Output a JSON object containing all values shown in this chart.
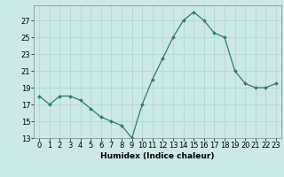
{
  "x": [
    0,
    1,
    2,
    3,
    4,
    5,
    6,
    7,
    8,
    9,
    10,
    11,
    12,
    13,
    14,
    15,
    16,
    17,
    18,
    19,
    20,
    21,
    22,
    23
  ],
  "y": [
    18,
    17,
    18,
    18,
    17.5,
    16.5,
    15.5,
    15,
    14.5,
    13,
    17,
    20,
    22.5,
    25,
    27,
    28,
    27,
    25.5,
    25,
    21,
    19.5,
    19,
    19,
    19.5
  ],
  "line_color": "#2d7d6e",
  "marker_color": "#2d7d6e",
  "bg_color": "#cce8e8",
  "grid_color": "#b0d8d8",
  "xlabel": "Humidex (Indice chaleur)",
  "ylim": [
    13,
    28
  ],
  "xlim": [
    -0.5,
    23.5
  ],
  "yticks": [
    13,
    15,
    17,
    19,
    21,
    23,
    25,
    27
  ],
  "xticks": [
    0,
    1,
    2,
    3,
    4,
    5,
    6,
    7,
    8,
    9,
    10,
    11,
    12,
    13,
    14,
    15,
    16,
    17,
    18,
    19,
    20,
    21,
    22,
    23
  ],
  "xlabel_fontsize": 6.5,
  "tick_fontsize": 6.0
}
